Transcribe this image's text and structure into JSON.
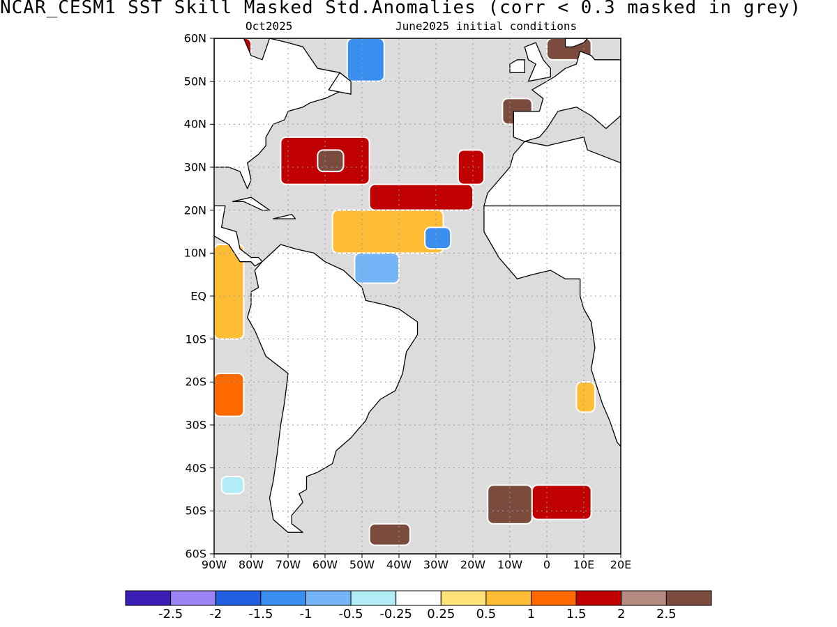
{
  "title": "NCAR_CESM1  SST Skill Masked Std.Anomalies (corr < 0.3 masked in grey)",
  "subtitle_left": "Oct2025",
  "subtitle_right": "June2025 initial conditions",
  "mask_color": "#dcdcdc",
  "land_color": "#ffffff",
  "lat_axis": {
    "range": [
      -60,
      60
    ],
    "labels": [
      {
        "value": 60,
        "text": "60N"
      },
      {
        "value": 50,
        "text": "50N"
      },
      {
        "value": 40,
        "text": "40N"
      },
      {
        "value": 30,
        "text": "30N"
      },
      {
        "value": 20,
        "text": "20N"
      },
      {
        "value": 10,
        "text": "10N"
      },
      {
        "value": 0,
        "text": "EQ"
      },
      {
        "value": -10,
        "text": "10S"
      },
      {
        "value": -20,
        "text": "20S"
      },
      {
        "value": -30,
        "text": "30S"
      },
      {
        "value": -40,
        "text": "40S"
      },
      {
        "value": -50,
        "text": "50S"
      },
      {
        "value": -60,
        "text": "60S"
      }
    ]
  },
  "lon_axis": {
    "range": [
      -90,
      20
    ],
    "labels": [
      {
        "value": -90,
        "text": "90W"
      },
      {
        "value": -80,
        "text": "80W"
      },
      {
        "value": -70,
        "text": "70W"
      },
      {
        "value": -60,
        "text": "60W"
      },
      {
        "value": -50,
        "text": "50W"
      },
      {
        "value": -40,
        "text": "40W"
      },
      {
        "value": -30,
        "text": "30W"
      },
      {
        "value": -20,
        "text": "20W"
      },
      {
        "value": -10,
        "text": "10W"
      },
      {
        "value": 0,
        "text": "0"
      },
      {
        "value": 10,
        "text": "10E"
      },
      {
        "value": 20,
        "text": "20E"
      }
    ]
  },
  "colorbar": {
    "colors": [
      "#3b1fb5",
      "#9b82f5",
      "#1f5fe0",
      "#3a8ef0",
      "#74b4f7",
      "#b2ecf7",
      "#ffffff",
      "#ffe27a",
      "#ffbd36",
      "#ff6a00",
      "#c00000",
      "#b58a80",
      "#7b4c3e"
    ],
    "labels": [
      "-2.5",
      "-2",
      "-1.5",
      "-1",
      "-0.5",
      "-0.25",
      "0.25",
      "0.5",
      "1",
      "1.5",
      "2",
      "2.5"
    ]
  },
  "anomaly_regions": [
    {
      "name": "nw-atlantic-warm",
      "lon": [
        -72,
        -48
      ],
      "lat": [
        26,
        37
      ],
      "level": 1.8
    },
    {
      "name": "gulf-stream-brown",
      "lon": [
        -62,
        -55
      ],
      "lat": [
        29,
        34
      ],
      "level": 2.6
    },
    {
      "name": "subtropical-band-warm",
      "lon": [
        -48,
        -20
      ],
      "lat": [
        20,
        26
      ],
      "level": 1.7
    },
    {
      "name": "canary-warm",
      "lon": [
        -24,
        -17
      ],
      "lat": [
        26,
        34
      ],
      "level": 1.6
    },
    {
      "name": "tropical-atlantic-mixed",
      "lon": [
        -58,
        -28
      ],
      "lat": [
        10,
        20
      ],
      "level": 0.6
    },
    {
      "name": "caribbean-cool",
      "lon": [
        -52,
        -40
      ],
      "lat": [
        3,
        10
      ],
      "level": -0.8
    },
    {
      "name": "west-african-cool",
      "lon": [
        -33,
        -26
      ],
      "lat": [
        11,
        16
      ],
      "level": -1.2
    },
    {
      "name": "pacific-equatorial-warm",
      "lon": [
        -90,
        -82
      ],
      "lat": [
        -10,
        12
      ],
      "level": 0.6
    },
    {
      "name": "peru-warm",
      "lon": [
        -90,
        -82
      ],
      "lat": [
        -28,
        -18
      ],
      "level": 1.1
    },
    {
      "name": "labrador-warm",
      "lon": [
        -90,
        -80
      ],
      "lat": [
        52,
        60
      ],
      "level": 1.6
    },
    {
      "name": "greenland-cool",
      "lon": [
        -54,
        -44
      ],
      "lat": [
        50,
        60
      ],
      "level": -1.1
    },
    {
      "name": "europe-brown",
      "lon": [
        -12,
        -4
      ],
      "lat": [
        40,
        46
      ],
      "level": 2.6
    },
    {
      "name": "north-sea-brown",
      "lon": [
        0,
        12
      ],
      "lat": [
        55,
        60
      ],
      "level": 2.7
    },
    {
      "name": "south-atlantic-brown-a",
      "lon": [
        -16,
        -4
      ],
      "lat": [
        -53,
        -44
      ],
      "level": 2.6
    },
    {
      "name": "south-atlantic-warm-b",
      "lon": [
        -4,
        12
      ],
      "lat": [
        -52,
        -44
      ],
      "level": 1.6
    },
    {
      "name": "drake-brown",
      "lon": [
        -48,
        -37
      ],
      "lat": [
        -58,
        -53
      ],
      "level": 2.6
    },
    {
      "name": "benguela-warm",
      "lon": [
        8,
        13
      ],
      "lat": [
        -27,
        -20
      ],
      "level": 0.9
    },
    {
      "name": "chile-cool",
      "lon": [
        -88,
        -82
      ],
      "lat": [
        -46,
        -42
      ],
      "level": -0.4
    }
  ],
  "land_polygons": [
    {
      "name": "north-america",
      "points": [
        [
          -90,
          60
        ],
        [
          -82,
          60
        ],
        [
          -80,
          56
        ],
        [
          -77,
          55
        ],
        [
          -75,
          60
        ],
        [
          -70,
          59
        ],
        [
          -66,
          58
        ],
        [
          -62,
          53
        ],
        [
          -56,
          52
        ],
        [
          -55,
          48
        ],
        [
          -60,
          46
        ],
        [
          -64,
          45
        ],
        [
          -66,
          44
        ],
        [
          -70,
          43
        ],
        [
          -71,
          41
        ],
        [
          -74,
          40
        ],
        [
          -76,
          37
        ],
        [
          -76,
          35
        ],
        [
          -78,
          33
        ],
        [
          -81,
          31
        ],
        [
          -80,
          27
        ],
        [
          -81,
          25
        ],
        [
          -83,
          29
        ],
        [
          -86,
          30
        ],
        [
          -89,
          30
        ],
        [
          -90,
          30
        ]
      ]
    },
    {
      "name": "central-america",
      "points": [
        [
          -90,
          21
        ],
        [
          -87,
          21
        ],
        [
          -88,
          16
        ],
        [
          -84,
          15
        ],
        [
          -83,
          11
        ],
        [
          -80,
          9
        ],
        [
          -78,
          9
        ],
        [
          -77,
          8
        ],
        [
          -79,
          7
        ],
        [
          -80,
          8
        ],
        [
          -83,
          8
        ],
        [
          -86,
          12
        ],
        [
          -88,
          13
        ],
        [
          -90,
          14
        ]
      ]
    },
    {
      "name": "south-america",
      "points": [
        [
          -77,
          8
        ],
        [
          -72,
          12
        ],
        [
          -68,
          11
        ],
        [
          -63,
          10
        ],
        [
          -60,
          8
        ],
        [
          -55,
          6
        ],
        [
          -50,
          2
        ],
        [
          -49,
          -1
        ],
        [
          -44,
          -2
        ],
        [
          -40,
          -3
        ],
        [
          -35,
          -6
        ],
        [
          -35,
          -9
        ],
        [
          -38,
          -13
        ],
        [
          -39,
          -18
        ],
        [
          -41,
          -22
        ],
        [
          -45,
          -24
        ],
        [
          -48,
          -27
        ],
        [
          -49,
          -29
        ],
        [
          -53,
          -33
        ],
        [
          -57,
          -36
        ],
        [
          -58,
          -39
        ],
        [
          -62,
          -41
        ],
        [
          -65,
          -42
        ],
        [
          -65,
          -45
        ],
        [
          -67,
          -46
        ],
        [
          -66,
          -48
        ],
        [
          -69,
          -51
        ],
        [
          -69,
          -53
        ],
        [
          -66,
          -55
        ],
        [
          -70,
          -55
        ],
        [
          -74,
          -52
        ],
        [
          -75,
          -47
        ],
        [
          -74,
          -43
        ],
        [
          -73,
          -37
        ],
        [
          -72,
          -30
        ],
        [
          -71,
          -25
        ],
        [
          -70,
          -18
        ],
        [
          -76,
          -14
        ],
        [
          -79,
          -8
        ],
        [
          -81,
          -5
        ],
        [
          -80,
          -2
        ],
        [
          -80,
          1
        ],
        [
          -78,
          2
        ],
        [
          -79,
          6
        ]
      ]
    },
    {
      "name": "africa",
      "points": [
        [
          -17,
          21
        ],
        [
          -17,
          15
        ],
        [
          -15,
          12
        ],
        [
          -13,
          9
        ],
        [
          -11,
          7
        ],
        [
          -8,
          4
        ],
        [
          -4,
          5
        ],
        [
          1,
          6
        ],
        [
          5,
          4
        ],
        [
          9,
          4
        ],
        [
          9,
          0
        ],
        [
          10,
          -3
        ],
        [
          12,
          -6
        ],
        [
          13,
          -12
        ],
        [
          12,
          -17
        ],
        [
          15,
          -25
        ],
        [
          17,
          -29
        ],
        [
          19,
          -34
        ],
        [
          20,
          -35
        ],
        [
          20,
          21
        ]
      ]
    },
    {
      "name": "northwest-africa",
      "points": [
        [
          -17,
          21
        ],
        [
          -16,
          24
        ],
        [
          -13,
          27
        ],
        [
          -10,
          30
        ],
        [
          -9,
          33
        ],
        [
          -6,
          36
        ],
        [
          0,
          35
        ],
        [
          10,
          37
        ],
        [
          11,
          34
        ],
        [
          20,
          31
        ],
        [
          20,
          21
        ]
      ]
    },
    {
      "name": "iberia-europe",
      "points": [
        [
          -9,
          37
        ],
        [
          -9,
          39
        ],
        [
          -9,
          43
        ],
        [
          -2,
          43
        ],
        [
          -1,
          46
        ],
        [
          -4,
          48
        ],
        [
          -2,
          49
        ],
        [
          2,
          51
        ],
        [
          5,
          53
        ],
        [
          8,
          54
        ],
        [
          9,
          57
        ],
        [
          12,
          56
        ],
        [
          13,
          55
        ],
        [
          20,
          55
        ],
        [
          20,
          42
        ],
        [
          16,
          39
        ],
        [
          12,
          42
        ],
        [
          8,
          44
        ],
        [
          3,
          43
        ],
        [
          0,
          39
        ],
        [
          -2,
          37
        ],
        [
          -6,
          36
        ]
      ]
    },
    {
      "name": "scandinavia",
      "points": [
        [
          5,
          60
        ],
        [
          5,
          58
        ],
        [
          7,
          58
        ],
        [
          10,
          59
        ],
        [
          11,
          60
        ]
      ]
    },
    {
      "name": "great-britain",
      "points": [
        [
          -5,
          50
        ],
        [
          1,
          51
        ],
        [
          1,
          53
        ],
        [
          -1,
          55
        ],
        [
          -2,
          57
        ],
        [
          -3,
          59
        ],
        [
          -6,
          58
        ],
        [
          -5,
          55
        ],
        [
          -3,
          54
        ],
        [
          -4,
          52
        ]
      ]
    },
    {
      "name": "ireland",
      "points": [
        [
          -10,
          52
        ],
        [
          -6,
          52
        ],
        [
          -6,
          55
        ],
        [
          -8,
          55
        ],
        [
          -10,
          54
        ]
      ]
    },
    {
      "name": "cuba",
      "points": [
        [
          -85,
          22
        ],
        [
          -80,
          23
        ],
        [
          -75,
          20
        ],
        [
          -77,
          20
        ],
        [
          -82,
          22
        ]
      ]
    },
    {
      "name": "hispaniola",
      "points": [
        [
          -74,
          18
        ],
        [
          -69,
          19
        ],
        [
          -68,
          18
        ],
        [
          -72,
          18
        ]
      ]
    },
    {
      "name": "newfoundland",
      "points": [
        [
          -59,
          48
        ],
        [
          -53,
          47
        ],
        [
          -53,
          50
        ],
        [
          -56,
          52
        ]
      ]
    }
  ]
}
